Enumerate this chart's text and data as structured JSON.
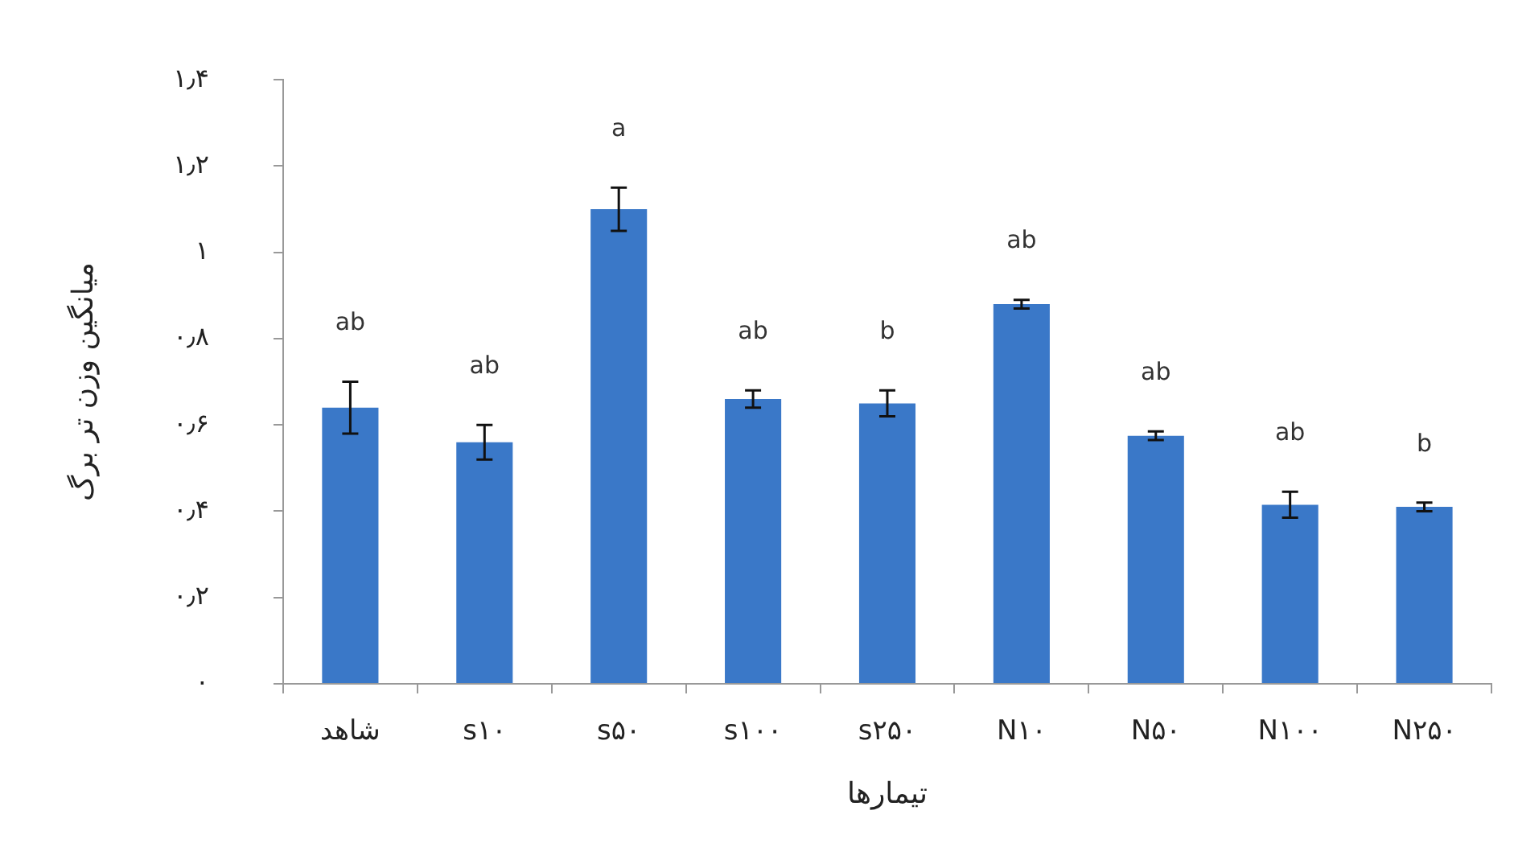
{
  "chart_data": {
    "type": "bar",
    "xlabel": "تیمارها",
    "ylabel": "میانگین وزن تر برگ",
    "categories": [
      "شاهد",
      "s۱۰",
      "s۵۰",
      "s۱۰۰",
      "s۲۵۰",
      "N۱۰",
      "N۵۰",
      "N۱۰۰",
      "N۲۵۰"
    ],
    "values": [
      0.64,
      0.56,
      1.1,
      0.66,
      0.65,
      0.88,
      0.575,
      0.415,
      0.41
    ],
    "errors": [
      0.06,
      0.04,
      0.05,
      0.02,
      0.03,
      0.01,
      0.01,
      0.03,
      0.01
    ],
    "color": "#3a78c8",
    "ylim": [
      0,
      1.4
    ],
    "yticks": [
      {
        "value": 0,
        "label": "۰"
      },
      {
        "value": 0.2,
        "label": "۰٫۲"
      },
      {
        "value": 0.4,
        "label": "۰٫۴"
      },
      {
        "value": 0.6,
        "label": "۰٫۶"
      },
      {
        "value": 0.8,
        "label": "۰٫۸"
      },
      {
        "value": 1,
        "label": "۱"
      },
      {
        "value": 1.2,
        "label": "۱٫۲"
      },
      {
        "value": 1.4,
        "label": "۱٫۴"
      }
    ],
    "grid": false,
    "legend": false,
    "annotations": [
      "ab",
      "ab",
      "a",
      "ab",
      "b",
      "ab",
      "ab",
      "ab",
      "b"
    ]
  }
}
